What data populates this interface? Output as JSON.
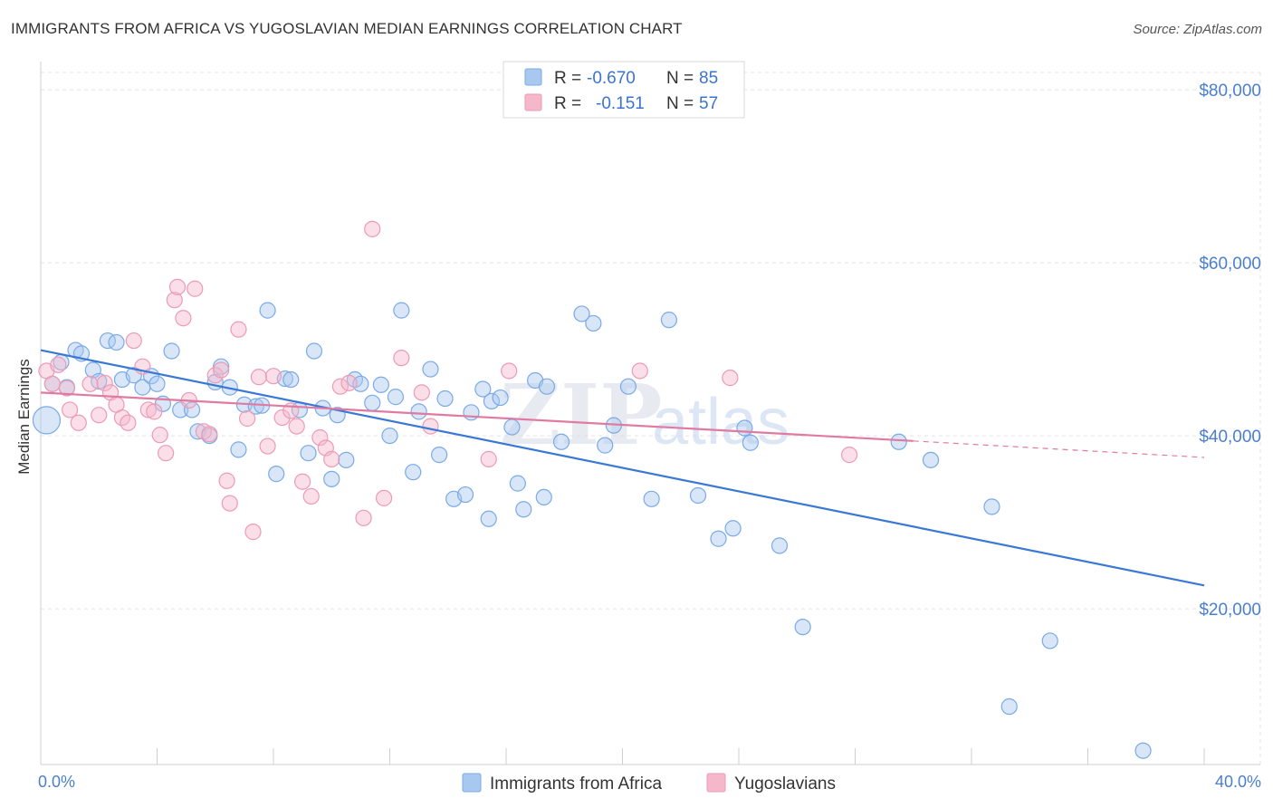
{
  "title": "IMMIGRANTS FROM AFRICA VS YUGOSLAVIAN MEDIAN EARNINGS CORRELATION CHART",
  "source": "Source: ZipAtlas.com",
  "watermark": {
    "zip": "ZIP",
    "atlas": "atlas"
  },
  "legend_top": {
    "rows": [
      {
        "r_label": "R =",
        "r_value": "-0.670",
        "n_label": "N =",
        "n_value": "85",
        "color": "#a8c8f0"
      },
      {
        "r_label": "R =",
        "r_value": "-0.151",
        "n_label": "N =",
        "n_value": "57",
        "color": "#f5b8cb"
      }
    ]
  },
  "chart_data": {
    "type": "scatter",
    "title": "IMMIGRANTS FROM AFRICA VS YUGOSLAVIAN MEDIAN EARNINGS CORRELATION CHART",
    "xlabel": "",
    "ylabel": "Median Earnings",
    "xlim": [
      0,
      40
    ],
    "ylim": [
      2000,
      82000
    ],
    "x_tick_labels": [
      "0.0%",
      "40.0%"
    ],
    "y_ticks": [
      20000,
      40000,
      60000,
      80000
    ],
    "y_tick_labels": [
      "$20,000",
      "$40,000",
      "$60,000",
      "$80,000"
    ],
    "grid": true,
    "legend_position": "top-center",
    "series": [
      {
        "name": "Immigrants from Africa",
        "color": "#7aaae6",
        "fill": "#a8c8f0",
        "trend": {
          "x": [
            0,
            40
          ],
          "y": [
            49900,
            22700
          ]
        },
        "points": [
          [
            0.2,
            41800
          ],
          [
            0.4,
            46000
          ],
          [
            0.7,
            48500
          ],
          [
            1.2,
            49900
          ],
          [
            1.4,
            49500
          ],
          [
            1.8,
            47600
          ],
          [
            2.0,
            46300
          ],
          [
            2.3,
            51000
          ],
          [
            2.6,
            50800
          ],
          [
            2.8,
            46500
          ],
          [
            3.2,
            47000
          ],
          [
            3.5,
            45600
          ],
          [
            3.8,
            46900
          ],
          [
            4.0,
            46000
          ],
          [
            4.2,
            43700
          ],
          [
            4.5,
            49800
          ],
          [
            4.8,
            43000
          ],
          [
            5.2,
            43000
          ],
          [
            5.4,
            40500
          ],
          [
            5.8,
            40000
          ],
          [
            6.0,
            46200
          ],
          [
            6.2,
            48000
          ],
          [
            6.5,
            45600
          ],
          [
            6.8,
            38400
          ],
          [
            7.0,
            43600
          ],
          [
            7.4,
            43400
          ],
          [
            7.6,
            43500
          ],
          [
            7.8,
            54500
          ],
          [
            8.1,
            35600
          ],
          [
            8.4,
            46600
          ],
          [
            8.6,
            46500
          ],
          [
            8.9,
            43000
          ],
          [
            9.2,
            38000
          ],
          [
            9.4,
            49800
          ],
          [
            9.7,
            43200
          ],
          [
            10.0,
            35000
          ],
          [
            10.2,
            42400
          ],
          [
            10.5,
            37200
          ],
          [
            10.8,
            46500
          ],
          [
            11.0,
            46000
          ],
          [
            11.4,
            43800
          ],
          [
            11.7,
            45900
          ],
          [
            12.0,
            40000
          ],
          [
            12.2,
            44500
          ],
          [
            12.4,
            54500
          ],
          [
            12.8,
            35800
          ],
          [
            13.0,
            42800
          ],
          [
            13.4,
            47700
          ],
          [
            13.7,
            37800
          ],
          [
            13.9,
            44300
          ],
          [
            14.2,
            32700
          ],
          [
            14.6,
            33200
          ],
          [
            14.8,
            42700
          ],
          [
            15.2,
            45400
          ],
          [
            15.5,
            44000
          ],
          [
            15.4,
            30400
          ],
          [
            15.8,
            44400
          ],
          [
            16.2,
            41000
          ],
          [
            16.4,
            34500
          ],
          [
            16.6,
            31500
          ],
          [
            17.0,
            46400
          ],
          [
            17.3,
            32900
          ],
          [
            17.4,
            45700
          ],
          [
            17.9,
            39300
          ],
          [
            18.6,
            54100
          ],
          [
            19.0,
            53000
          ],
          [
            19.4,
            38900
          ],
          [
            19.7,
            41200
          ],
          [
            20.2,
            45700
          ],
          [
            21.0,
            32700
          ],
          [
            21.6,
            53400
          ],
          [
            22.6,
            33100
          ],
          [
            23.3,
            28100
          ],
          [
            23.8,
            29300
          ],
          [
            24.2,
            40900
          ],
          [
            24.4,
            39200
          ],
          [
            25.4,
            27300
          ],
          [
            26.2,
            17900
          ],
          [
            29.5,
            39300
          ],
          [
            30.6,
            37200
          ],
          [
            32.7,
            31800
          ],
          [
            33.3,
            8700
          ],
          [
            34.7,
            16300
          ],
          [
            37.9,
            3600
          ],
          [
            0.9,
            45600
          ]
        ]
      },
      {
        "name": "Yugoslavians",
        "color": "#ee9ab5",
        "fill": "#f5b8cb",
        "trend": {
          "x": [
            0,
            30
          ],
          "y": [
            45000,
            39400
          ]
        },
        "trend_dashed": {
          "x": [
            30,
            40
          ],
          "y": [
            39400,
            37500
          ]
        },
        "points": [
          [
            0.2,
            47500
          ],
          [
            0.4,
            46000
          ],
          [
            0.6,
            48200
          ],
          [
            0.9,
            45500
          ],
          [
            1.0,
            43000
          ],
          [
            1.3,
            41500
          ],
          [
            1.7,
            46000
          ],
          [
            2.0,
            42400
          ],
          [
            2.2,
            46100
          ],
          [
            2.4,
            45000
          ],
          [
            2.6,
            43600
          ],
          [
            2.8,
            42100
          ],
          [
            3.0,
            41500
          ],
          [
            3.2,
            51000
          ],
          [
            3.5,
            48000
          ],
          [
            3.7,
            43000
          ],
          [
            3.9,
            42800
          ],
          [
            4.1,
            40100
          ],
          [
            4.3,
            38000
          ],
          [
            4.6,
            55700
          ],
          [
            4.7,
            57200
          ],
          [
            4.9,
            53600
          ],
          [
            5.1,
            44100
          ],
          [
            5.3,
            57000
          ],
          [
            5.6,
            40500
          ],
          [
            5.8,
            40200
          ],
          [
            6.0,
            47000
          ],
          [
            6.2,
            47600
          ],
          [
            6.4,
            34800
          ],
          [
            6.5,
            32200
          ],
          [
            6.8,
            52300
          ],
          [
            7.1,
            42000
          ],
          [
            7.3,
            28900
          ],
          [
            7.5,
            46800
          ],
          [
            7.8,
            38800
          ],
          [
            8.0,
            46900
          ],
          [
            8.3,
            42100
          ],
          [
            8.6,
            42900
          ],
          [
            8.8,
            41100
          ],
          [
            9.0,
            34700
          ],
          [
            9.3,
            33000
          ],
          [
            9.6,
            39800
          ],
          [
            9.8,
            38600
          ],
          [
            10.0,
            37300
          ],
          [
            10.3,
            45700
          ],
          [
            10.6,
            46100
          ],
          [
            11.1,
            30500
          ],
          [
            11.4,
            63900
          ],
          [
            11.8,
            32800
          ],
          [
            12.4,
            49000
          ],
          [
            13.1,
            45000
          ],
          [
            13.4,
            41100
          ],
          [
            15.4,
            37300
          ],
          [
            16.1,
            47500
          ],
          [
            20.6,
            47500
          ],
          [
            23.7,
            46700
          ],
          [
            27.8,
            37800
          ]
        ]
      }
    ]
  }
}
